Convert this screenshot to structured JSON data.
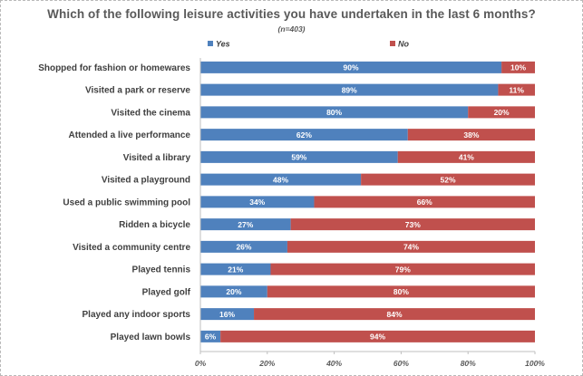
{
  "chart_data": {
    "type": "bar",
    "orientation": "horizontal",
    "stacked": true,
    "title": "Which of the following leisure activities you have undertaken in the last 6 months?",
    "subtitle": "(n=403)",
    "categories": [
      "Shopped for fashion or homewares",
      "Visited a park or reserve",
      "Visited the cinema",
      "Attended a live performance",
      "Visited a library",
      "Visited a playground",
      "Used a public swimming pool",
      "Ridden a bicycle",
      "Visited a community centre",
      "Played tennis",
      "Played golf",
      "Played any indoor sports",
      "Played lawn bowls"
    ],
    "series": [
      {
        "name": "Yes",
        "color": "#4f81bd",
        "values": [
          90,
          89,
          80,
          62,
          59,
          48,
          34,
          27,
          26,
          21,
          20,
          16,
          6
        ]
      },
      {
        "name": "No",
        "color": "#c0504d",
        "values": [
          10,
          11,
          20,
          38,
          41,
          52,
          66,
          73,
          74,
          79,
          80,
          84,
          94
        ]
      }
    ],
    "data_label_suffix": "%",
    "xlim": [
      0,
      100
    ],
    "xticks": [
      0,
      20,
      40,
      60,
      80,
      100
    ],
    "xtick_labels": [
      "0%",
      "20%",
      "40%",
      "60%",
      "80%",
      "100%"
    ],
    "legend_position": "top",
    "grid": false
  }
}
